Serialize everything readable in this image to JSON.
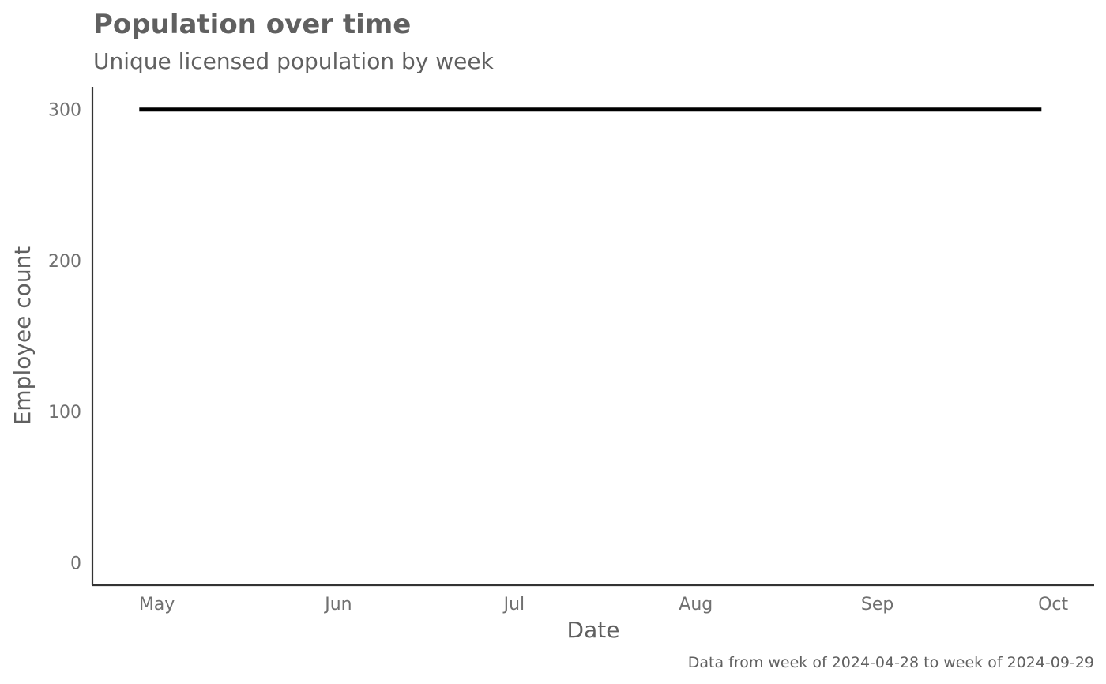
{
  "chart_data": {
    "type": "line",
    "title": "Population over time",
    "subtitle": "Unique licensed population by week",
    "xlabel": "Date",
    "ylabel": "Employee count",
    "caption": "Data from week of 2024-04-28 to week of 2024-09-29",
    "x_ticks": [
      "May",
      "Jun",
      "Jul",
      "Aug",
      "Sep",
      "Oct"
    ],
    "y_ticks": [
      0,
      100,
      200,
      300
    ],
    "ylim": [
      -15,
      315
    ],
    "xlim": [
      "2024-04-20",
      "2024-10-08"
    ],
    "grid": false,
    "series": [
      {
        "color": "#000000",
        "x": [
          "2024-04-28",
          "2024-05-05",
          "2024-05-12",
          "2024-05-19",
          "2024-05-26",
          "2024-06-02",
          "2024-06-09",
          "2024-06-16",
          "2024-06-23",
          "2024-06-30",
          "2024-07-07",
          "2024-07-14",
          "2024-07-21",
          "2024-07-28",
          "2024-08-04",
          "2024-08-11",
          "2024-08-18",
          "2024-08-25",
          "2024-09-01",
          "2024-09-08",
          "2024-09-15",
          "2024-09-22",
          "2024-09-29"
        ],
        "values": [
          300,
          300,
          300,
          300,
          300,
          300,
          300,
          300,
          300,
          300,
          300,
          300,
          300,
          300,
          300,
          300,
          300,
          300,
          300,
          300,
          300,
          300,
          300
        ]
      }
    ]
  }
}
